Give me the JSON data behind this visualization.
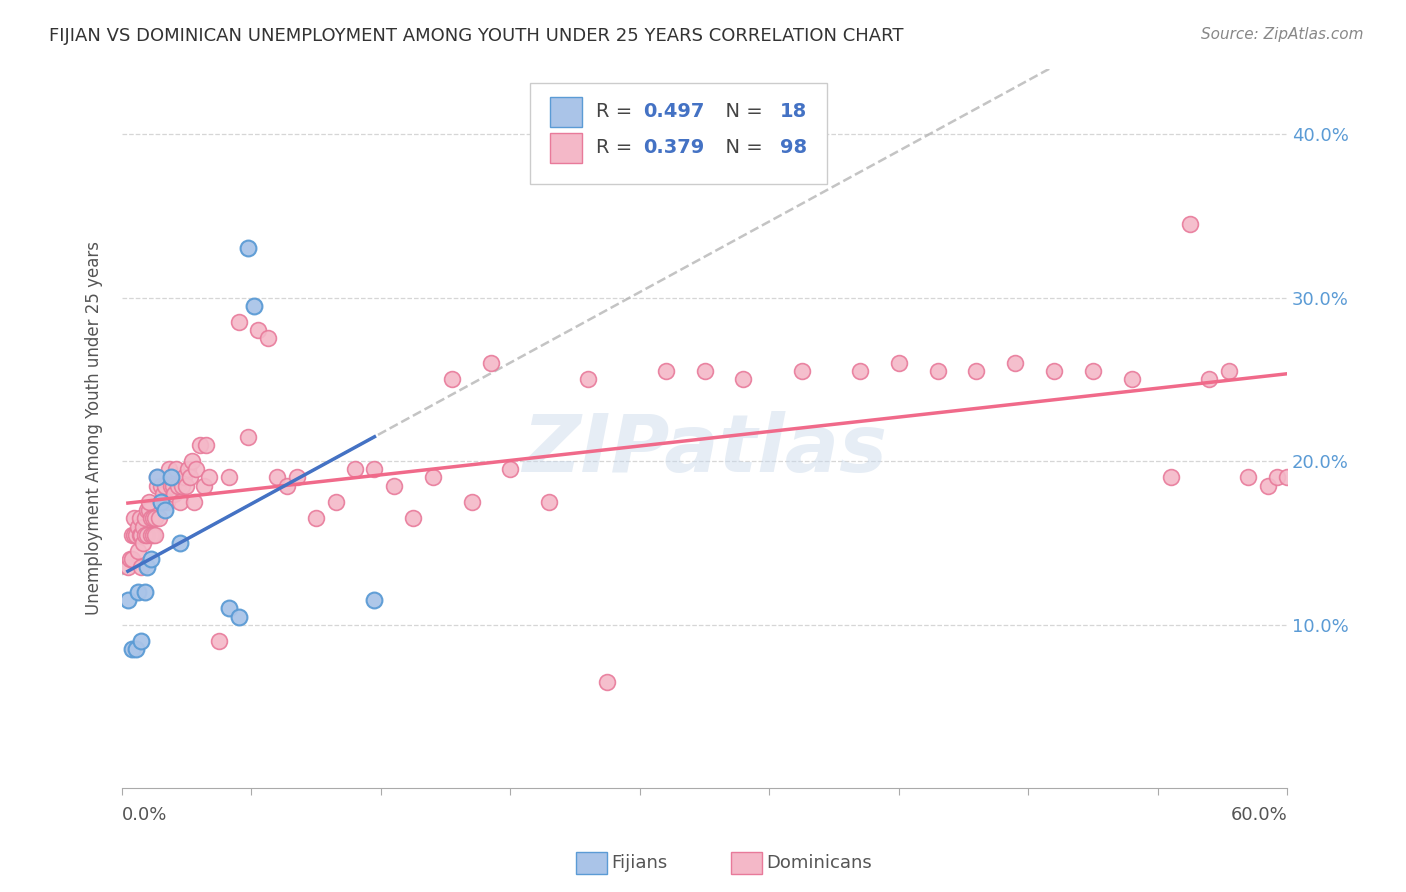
{
  "title": "FIJIAN VS DOMINICAN UNEMPLOYMENT AMONG YOUTH UNDER 25 YEARS CORRELATION CHART",
  "source": "Source: ZipAtlas.com",
  "ylabel": "Unemployment Among Youth under 25 years",
  "xlim": [
    0.0,
    0.6
  ],
  "ylim": [
    0.0,
    0.44
  ],
  "fijian_R": 0.497,
  "fijian_N": 18,
  "dominican_R": 0.379,
  "dominican_N": 98,
  "fijian_color": "#aac4e8",
  "fijian_edge_color": "#5b9bd5",
  "dominican_color": "#f4b8c8",
  "dominican_edge_color": "#e87a9a",
  "fijian_line_color": "#4472c4",
  "dominican_line_color": "#f06a8a",
  "dashed_color": "#b0b0b0",
  "background_color": "#ffffff",
  "watermark": "ZIPatlas",
  "fijians_x": [
    0.003,
    0.005,
    0.007,
    0.008,
    0.01,
    0.012,
    0.013,
    0.015,
    0.018,
    0.02,
    0.022,
    0.025,
    0.03,
    0.055,
    0.06,
    0.065,
    0.068,
    0.13
  ],
  "fijians_y": [
    0.115,
    0.085,
    0.085,
    0.12,
    0.09,
    0.12,
    0.135,
    0.14,
    0.19,
    0.175,
    0.17,
    0.19,
    0.15,
    0.11,
    0.105,
    0.33,
    0.295,
    0.115
  ],
  "dominicans_x": [
    0.003,
    0.004,
    0.005,
    0.005,
    0.006,
    0.006,
    0.007,
    0.008,
    0.008,
    0.009,
    0.009,
    0.01,
    0.01,
    0.011,
    0.011,
    0.012,
    0.012,
    0.013,
    0.013,
    0.014,
    0.014,
    0.015,
    0.015,
    0.016,
    0.016,
    0.017,
    0.017,
    0.018,
    0.018,
    0.019,
    0.02,
    0.02,
    0.021,
    0.022,
    0.022,
    0.023,
    0.024,
    0.025,
    0.026,
    0.027,
    0.028,
    0.029,
    0.03,
    0.031,
    0.032,
    0.033,
    0.034,
    0.035,
    0.036,
    0.037,
    0.038,
    0.04,
    0.042,
    0.043,
    0.045,
    0.05,
    0.055,
    0.06,
    0.065,
    0.07,
    0.075,
    0.08,
    0.085,
    0.09,
    0.1,
    0.11,
    0.12,
    0.13,
    0.14,
    0.15,
    0.16,
    0.17,
    0.18,
    0.19,
    0.2,
    0.22,
    0.24,
    0.25,
    0.28,
    0.3,
    0.32,
    0.35,
    0.38,
    0.4,
    0.42,
    0.44,
    0.46,
    0.48,
    0.5,
    0.52,
    0.54,
    0.55,
    0.56,
    0.57,
    0.58,
    0.59,
    0.595,
    0.6
  ],
  "dominicans_y": [
    0.135,
    0.14,
    0.14,
    0.155,
    0.155,
    0.165,
    0.155,
    0.145,
    0.16,
    0.155,
    0.165,
    0.135,
    0.155,
    0.15,
    0.16,
    0.155,
    0.165,
    0.155,
    0.17,
    0.17,
    0.175,
    0.155,
    0.165,
    0.155,
    0.165,
    0.155,
    0.165,
    0.185,
    0.19,
    0.165,
    0.175,
    0.185,
    0.18,
    0.175,
    0.185,
    0.175,
    0.195,
    0.185,
    0.185,
    0.18,
    0.195,
    0.185,
    0.175,
    0.185,
    0.19,
    0.185,
    0.195,
    0.19,
    0.2,
    0.175,
    0.195,
    0.21,
    0.185,
    0.21,
    0.19,
    0.09,
    0.19,
    0.285,
    0.215,
    0.28,
    0.275,
    0.19,
    0.185,
    0.19,
    0.165,
    0.175,
    0.195,
    0.195,
    0.185,
    0.165,
    0.19,
    0.25,
    0.175,
    0.26,
    0.195,
    0.175,
    0.25,
    0.065,
    0.255,
    0.255,
    0.25,
    0.255,
    0.255,
    0.26,
    0.255,
    0.255,
    0.26,
    0.255,
    0.255,
    0.25,
    0.19,
    0.345,
    0.25,
    0.255,
    0.19,
    0.185,
    0.19,
    0.19
  ]
}
